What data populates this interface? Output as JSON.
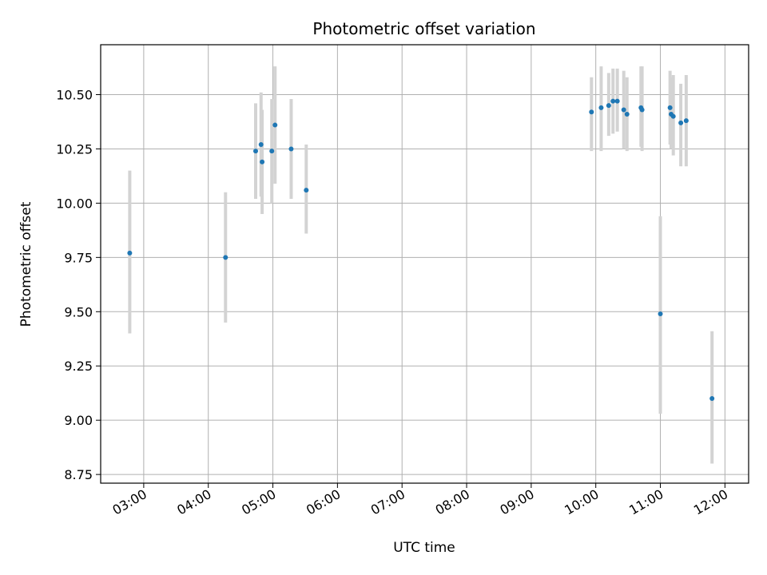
{
  "chart_data": {
    "type": "scatter",
    "title": "Photometric offset variation",
    "xlabel": "UTC time",
    "ylabel": "Photometric offset",
    "xlim": [
      "02:20",
      "12:22"
    ],
    "ylim": [
      8.71,
      10.73
    ],
    "x_ticks": [
      "03:00",
      "04:00",
      "05:00",
      "06:00",
      "07:00",
      "08:00",
      "09:00",
      "10:00",
      "11:00",
      "12:00"
    ],
    "y_ticks": [
      8.75,
      9.0,
      9.25,
      9.5,
      9.75,
      10.0,
      10.25,
      10.5
    ],
    "y_tick_labels": [
      "8.75",
      "9.00",
      "9.25",
      "9.50",
      "9.75",
      "10.00",
      "10.25",
      "10.50"
    ],
    "grid": true,
    "colors": {
      "point": "#1f77b4",
      "errorbar": "#d3d3d3",
      "grid": "#b0b0b0"
    },
    "points": [
      {
        "x": "02:47",
        "y": 9.77,
        "lo": 9.4,
        "hi": 10.15
      },
      {
        "x": "04:16",
        "y": 9.75,
        "lo": 9.45,
        "hi": 10.05
      },
      {
        "x": "04:44",
        "y": 10.24,
        "lo": 10.02,
        "hi": 10.46
      },
      {
        "x": "04:49",
        "y": 10.27,
        "lo": 10.03,
        "hi": 10.51
      },
      {
        "x": "04:50",
        "y": 10.19,
        "lo": 9.95,
        "hi": 10.43
      },
      {
        "x": "04:59",
        "y": 10.24,
        "lo": 10.0,
        "hi": 10.48
      },
      {
        "x": "05:02",
        "y": 10.36,
        "lo": 10.09,
        "hi": 10.63
      },
      {
        "x": "05:17",
        "y": 10.25,
        "lo": 10.02,
        "hi": 10.48
      },
      {
        "x": "05:31",
        "y": 10.06,
        "lo": 9.86,
        "hi": 10.27
      },
      {
        "x": "09:56",
        "y": 10.42,
        "lo": 10.24,
        "hi": 10.58
      },
      {
        "x": "10:05",
        "y": 10.44,
        "lo": 10.24,
        "hi": 10.63
      },
      {
        "x": "10:12",
        "y": 10.45,
        "lo": 10.31,
        "hi": 10.6
      },
      {
        "x": "10:16",
        "y": 10.47,
        "lo": 10.32,
        "hi": 10.62
      },
      {
        "x": "10:20",
        "y": 10.47,
        "lo": 10.33,
        "hi": 10.62
      },
      {
        "x": "10:26",
        "y": 10.43,
        "lo": 10.25,
        "hi": 10.61
      },
      {
        "x": "10:29",
        "y": 10.41,
        "lo": 10.24,
        "hi": 10.58
      },
      {
        "x": "10:42",
        "y": 10.44,
        "lo": 10.26,
        "hi": 10.63
      },
      {
        "x": "10:43",
        "y": 10.43,
        "lo": 10.24,
        "hi": 10.63
      },
      {
        "x": "11:00",
        "y": 9.49,
        "lo": 9.03,
        "hi": 9.94
      },
      {
        "x": "11:09",
        "y": 10.44,
        "lo": 10.27,
        "hi": 10.61
      },
      {
        "x": "11:10",
        "y": 10.41,
        "lo": 10.25,
        "hi": 10.58
      },
      {
        "x": "11:12",
        "y": 10.4,
        "lo": 10.22,
        "hi": 10.59
      },
      {
        "x": "11:19",
        "y": 10.37,
        "lo": 10.17,
        "hi": 10.55
      },
      {
        "x": "11:24",
        "y": 10.38,
        "lo": 10.17,
        "hi": 10.59
      },
      {
        "x": "11:48",
        "y": 9.1,
        "lo": 8.8,
        "hi": 9.41
      }
    ]
  }
}
